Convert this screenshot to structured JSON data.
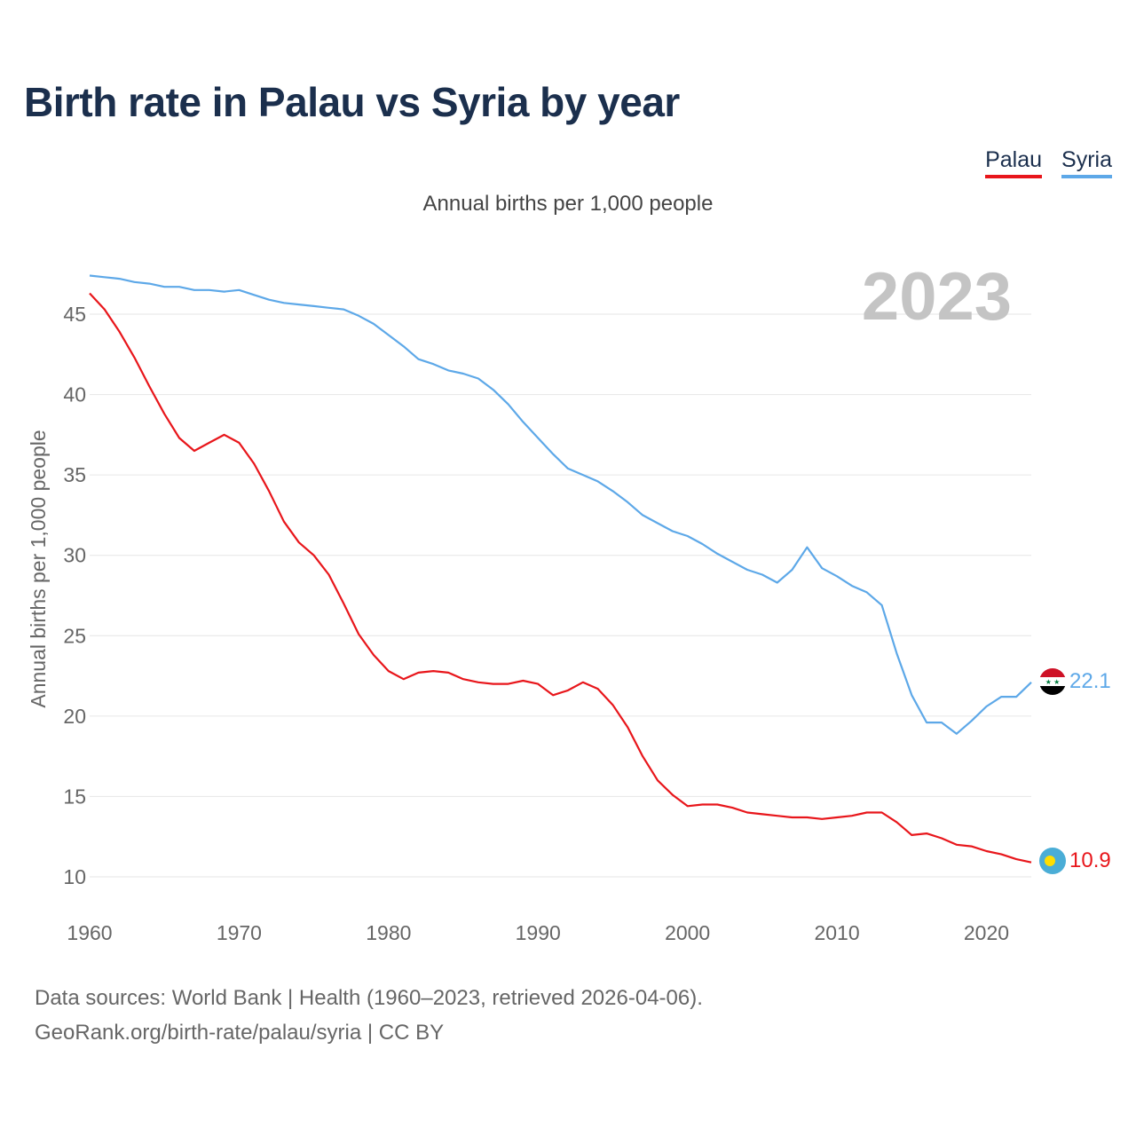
{
  "title": "Birth rate in Palau vs Syria by year",
  "subtitle": "Annual births per 1,000 people",
  "footer": {
    "line1": "Data sources: World Bank | Health (1960–2023, retrieved 2026-04-06).",
    "line2": "GeoRank.org/birth-rate/palau/syria | CC BY"
  },
  "colors": {
    "palau": "#e8161b",
    "syria": "#5da8e8",
    "title": "#1b2f4d"
  },
  "chart_data": {
    "type": "line",
    "title": "Birth rate in Palau vs Syria by year",
    "ylabel": "Annual births per 1,000 people",
    "xlabel": "",
    "year_label": "2023",
    "xlim": [
      1960,
      2023
    ],
    "ylim": [
      10,
      47.5
    ],
    "xticks": [
      1960,
      1970,
      1980,
      1990,
      2000,
      2010,
      2020
    ],
    "yticks": [
      10,
      15,
      20,
      25,
      30,
      35,
      40,
      45
    ],
    "grid": true,
    "legend": "top-right",
    "x": [
      1960,
      1961,
      1962,
      1963,
      1964,
      1965,
      1966,
      1967,
      1968,
      1969,
      1970,
      1971,
      1972,
      1973,
      1974,
      1975,
      1976,
      1977,
      1978,
      1979,
      1980,
      1981,
      1982,
      1983,
      1984,
      1985,
      1986,
      1987,
      1988,
      1989,
      1990,
      1991,
      1992,
      1993,
      1994,
      1995,
      1996,
      1997,
      1998,
      1999,
      2000,
      2001,
      2002,
      2003,
      2004,
      2005,
      2006,
      2007,
      2008,
      2009,
      2010,
      2011,
      2012,
      2013,
      2014,
      2015,
      2016,
      2017,
      2018,
      2019,
      2020,
      2021,
      2022,
      2023
    ],
    "series": [
      {
        "name": "Palau",
        "end_label": "10.9",
        "values": [
          46.3,
          45.3,
          43.9,
          42.3,
          40.5,
          38.8,
          37.3,
          36.5,
          37.0,
          37.5,
          37.0,
          35.7,
          34.0,
          32.1,
          30.8,
          30.0,
          28.8,
          27.0,
          25.1,
          23.8,
          22.8,
          22.3,
          22.7,
          22.8,
          22.7,
          22.3,
          22.1,
          22.0,
          22.0,
          22.2,
          22.0,
          21.3,
          21.6,
          22.1,
          21.7,
          20.7,
          19.3,
          17.5,
          16.0,
          15.1,
          14.4,
          14.5,
          14.5,
          14.3,
          14.0,
          13.9,
          13.8,
          13.7,
          13.7,
          13.6,
          13.7,
          13.8,
          14.0,
          14.0,
          13.4,
          12.6,
          12.7,
          12.4,
          12.0,
          11.9,
          11.6,
          11.4,
          11.1,
          10.9
        ]
      },
      {
        "name": "Syria",
        "end_label": "22.1",
        "values": [
          47.4,
          47.3,
          47.2,
          47.0,
          46.9,
          46.7,
          46.7,
          46.5,
          46.5,
          46.4,
          46.5,
          46.2,
          45.9,
          45.7,
          45.6,
          45.5,
          45.4,
          45.3,
          44.9,
          44.4,
          43.7,
          43.0,
          42.2,
          41.9,
          41.5,
          41.3,
          41.0,
          40.3,
          39.4,
          38.3,
          37.3,
          36.3,
          35.4,
          35.0,
          34.6,
          34.0,
          33.3,
          32.5,
          32.0,
          31.5,
          31.2,
          30.7,
          30.1,
          29.6,
          29.1,
          28.8,
          28.3,
          29.1,
          30.5,
          29.2,
          28.7,
          28.1,
          27.7,
          26.9,
          23.9,
          21.3,
          19.6,
          19.6,
          18.9,
          19.7,
          20.6,
          21.2,
          21.2,
          22.1
        ]
      }
    ]
  }
}
